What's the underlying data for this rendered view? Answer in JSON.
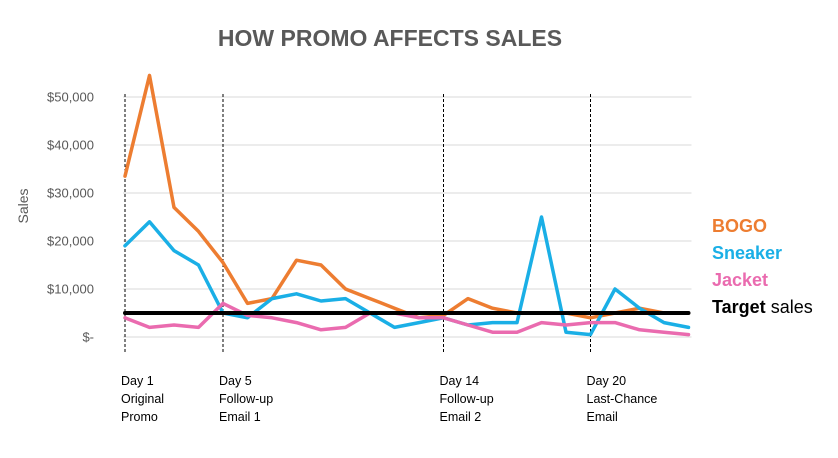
{
  "chart_data": {
    "type": "line",
    "title": "HOW PROMO AFFECTS SALES",
    "xlabel": "",
    "ylabel": "Sales",
    "ylim": [
      0,
      55000
    ],
    "yticks": [
      0,
      10000,
      20000,
      30000,
      40000,
      50000
    ],
    "ytick_labels": [
      "$-",
      "$10,000",
      "$20,000",
      "$30,000",
      "$40,000",
      "$50,000"
    ],
    "x": [
      1,
      2,
      3,
      4,
      5,
      6,
      7,
      8,
      9,
      10,
      11,
      12,
      13,
      14,
      15,
      16,
      17,
      18,
      19,
      20,
      21,
      22,
      23,
      24
    ],
    "grid": "horizontal",
    "legend_placement": "right",
    "series": [
      {
        "name": "BOGO",
        "color": "#ED7D31",
        "values": [
          33500,
          54500,
          27000,
          22000,
          15500,
          7000,
          8000,
          16000,
          15000,
          10000,
          8000,
          6000,
          4000,
          4500,
          8000,
          6000,
          5000,
          5000,
          5000,
          4000,
          5000,
          6000,
          5000,
          5000
        ]
      },
      {
        "name": "Sneaker",
        "color": "#1AAFE6",
        "values": [
          19000,
          24000,
          18000,
          15000,
          5000,
          4000,
          8000,
          9000,
          7500,
          8000,
          5000,
          2000,
          3000,
          4000,
          2500,
          3000,
          3000,
          25000,
          1000,
          500,
          10000,
          6000,
          3000,
          2000
        ]
      },
      {
        "name": "Jacket",
        "color": "#EA6BAF",
        "values": [
          4000,
          2000,
          2500,
          2000,
          7000,
          4500,
          4000,
          3000,
          1500,
          2000,
          5000,
          5000,
          4000,
          4000,
          2500,
          1000,
          1000,
          3000,
          2500,
          3000,
          3000,
          1500,
          1000,
          500
        ]
      },
      {
        "name": "Target sales",
        "color": "#000000",
        "values": [
          5000,
          5000,
          5000,
          5000,
          5000,
          5000,
          5000,
          5000,
          5000,
          5000,
          5000,
          5000,
          5000,
          5000,
          5000,
          5000,
          5000,
          5000,
          5000,
          5000,
          5000,
          5000,
          5000,
          5000
        ]
      }
    ],
    "legend": [
      {
        "bold": "BOGO",
        "rest": "",
        "color": "#ED7D31"
      },
      {
        "bold": "Sneaker",
        "rest": "",
        "color": "#1AAFE6"
      },
      {
        "bold": "Jacket",
        "rest": "",
        "color": "#EA6BAF"
      },
      {
        "bold": "Target",
        "rest": " sales",
        "color": "#000000"
      }
    ],
    "events": [
      {
        "x": 1,
        "lines": [
          "Day 1",
          "Original",
          "Promo"
        ]
      },
      {
        "x": 5,
        "lines": [
          "Day 5",
          "Follow-up",
          "Email 1"
        ]
      },
      {
        "x": 14,
        "lines": [
          "Day 14",
          "Follow-up",
          "Email 2"
        ]
      },
      {
        "x": 20,
        "lines": [
          "Day 20",
          "Last-Chance",
          "Email"
        ]
      }
    ]
  }
}
